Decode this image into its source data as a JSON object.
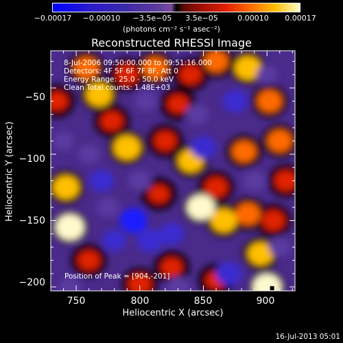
{
  "chart_data": {
    "type": "heatmap",
    "title": "Reconstructed RHESSI Image",
    "xlabel": "Heliocentric X (arcsec)",
    "ylabel": "Heliocentric Y (arcsec)",
    "xlim": [
      730,
      922
    ],
    "ylim": [
      -203,
      -22
    ],
    "x_ticks": [
      "750",
      "800",
      "850",
      "900"
    ],
    "y_ticks": [
      "−50",
      "−100",
      "−150",
      "−200"
    ],
    "colorbar": {
      "ticks": [
        "−0.00017",
        "−0.00010",
        "−3.5e−05",
        "3.5e−05",
        "0.00010",
        "0.00017"
      ],
      "units": "(photons cm⁻² s⁻¹ asec⁻²)",
      "range": [
        -0.00017,
        0.00017
      ]
    },
    "info_lines": [
      " 8-Jul-2006 09:50:00.000 to 09:51:16.000",
      "Detectors: 4F 5F 6F 7F 8F, Att 0",
      "Energy Range: 25.0 - 50.0 keV",
      "Clean     Total counts: 1.48E+03"
    ],
    "peak_label": "Position of Peak = [904,-201]",
    "peak": [
      904,
      -201
    ],
    "blobs": [
      {
        "x": 745,
        "y": -155,
        "v": 0.00017
      },
      {
        "x": 742,
        "y": -125,
        "v": 0.00014
      },
      {
        "x": 735,
        "y": -60,
        "v": 8e-05
      },
      {
        "x": 758,
        "y": -35,
        "v": 0.00012
      },
      {
        "x": 768,
        "y": -55,
        "v": 0.00014
      },
      {
        "x": 790,
        "y": -40,
        "v": 0.0001
      },
      {
        "x": 812,
        "y": -35,
        "v": 0.00012
      },
      {
        "x": 790,
        "y": -95,
        "v": 0.00015
      },
      {
        "x": 778,
        "y": -75,
        "v": 9e-05
      },
      {
        "x": 760,
        "y": -180,
        "v": 9e-05
      },
      {
        "x": 800,
        "y": -198,
        "v": 0.0001
      },
      {
        "x": 825,
        "y": -185,
        "v": 8e-05
      },
      {
        "x": 820,
        "y": -90,
        "v": 9e-05
      },
      {
        "x": 815,
        "y": -130,
        "v": 7e-05
      },
      {
        "x": 840,
        "y": -105,
        "v": 0.00013
      },
      {
        "x": 860,
        "y": -125,
        "v": 0.0001
      },
      {
        "x": 866,
        "y": -150,
        "v": 0.00014
      },
      {
        "x": 848,
        "y": -140,
        "v": 0.00016
      },
      {
        "x": 885,
        "y": -145,
        "v": 0.00012
      },
      {
        "x": 905,
        "y": -150,
        "v": 0.0001
      },
      {
        "x": 895,
        "y": -175,
        "v": 0.00013
      },
      {
        "x": 900,
        "y": -200,
        "v": 0.00017
      },
      {
        "x": 882,
        "y": -98,
        "v": 0.00011
      },
      {
        "x": 910,
        "y": -90,
        "v": 0.00012
      },
      {
        "x": 915,
        "y": -120,
        "v": 0.0001
      },
      {
        "x": 902,
        "y": -60,
        "v": 0.00012
      },
      {
        "x": 885,
        "y": -35,
        "v": 0.00014
      },
      {
        "x": 860,
        "y": -30,
        "v": 0.00011
      },
      {
        "x": 840,
        "y": -40,
        "v": 9e-05
      },
      {
        "x": 830,
        "y": -62,
        "v": 8e-05
      },
      {
        "x": 860,
        "y": -195,
        "v": 7e-05
      },
      {
        "x": 770,
        "y": -120,
        "v": -0.00012
      },
      {
        "x": 795,
        "y": -150,
        "v": -0.00016
      },
      {
        "x": 808,
        "y": -165,
        "v": -0.00014
      },
      {
        "x": 825,
        "y": -160,
        "v": -0.00012
      },
      {
        "x": 870,
        "y": -190,
        "v": -0.00014
      },
      {
        "x": 850,
        "y": -95,
        "v": -0.00013
      },
      {
        "x": 845,
        "y": -70,
        "v": -0.0001
      },
      {
        "x": 875,
        "y": -60,
        "v": -0.00013
      },
      {
        "x": 800,
        "y": -120,
        "v": -0.0001
      },
      {
        "x": 780,
        "y": -165,
        "v": -0.00011
      },
      {
        "x": 760,
        "y": -100,
        "v": -9e-05
      },
      {
        "x": 805,
        "y": -60,
        "v": -9e-05
      },
      {
        "x": 830,
        "y": -200,
        "v": -0.0001
      },
      {
        "x": 890,
        "y": -120,
        "v": -0.0001
      },
      {
        "x": 910,
        "y": -170,
        "v": -9e-05
      },
      {
        "x": 740,
        "y": -90,
        "v": -8e-05
      },
      {
        "x": 745,
        "y": -200,
        "v": -9e-05
      },
      {
        "x": 775,
        "y": -140,
        "v": -9e-05
      },
      {
        "x": 900,
        "y": -40,
        "v": -8e-05
      }
    ]
  },
  "footer": {
    "timestamp": "16-Jul-2013 05:01"
  }
}
